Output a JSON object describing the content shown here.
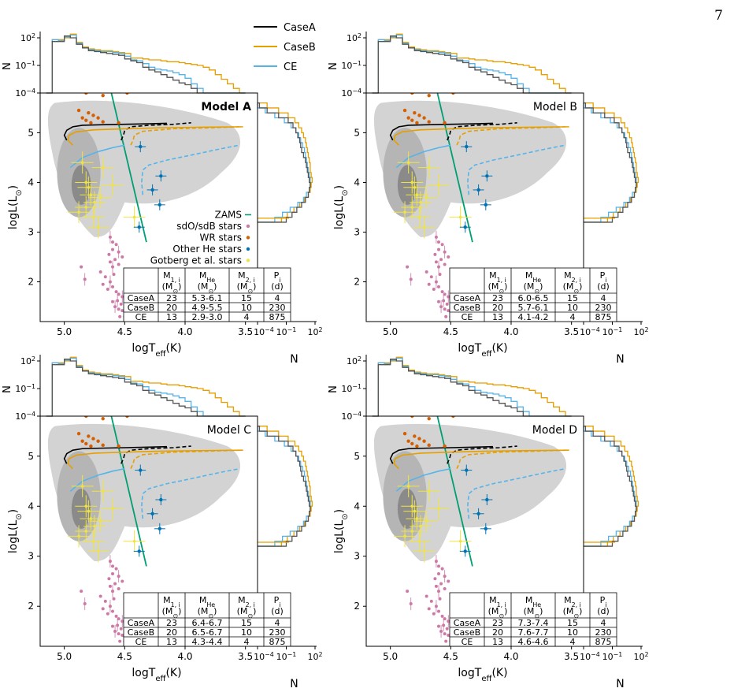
{
  "page_number": "7",
  "legend_tracks": [
    "CaseA",
    "CaseB",
    "CE"
  ],
  "legend_stars": [
    "ZAMS",
    "sdO/sdB stars",
    "WR stars",
    "Other He stars",
    "Gotberg et al. stars"
  ],
  "colors": {
    "CaseA": "#000000",
    "CaseB": "#e69f00",
    "CE": "#56b4e9",
    "ZAMS": "#009e73",
    "sdO": "#cc79a7",
    "WR": "#d55e00",
    "OtherHe": "#0072b2",
    "Gotberg": "#f0e442",
    "contour_light": "#d3d3d3",
    "contour_mid": "#b5b5b5",
    "contour_dark": "#8a8a8a"
  },
  "axes": {
    "xlabel": "logT",
    "xlabel_sub": "eff",
    "xlabel_unit": "(K)",
    "ylabel": "logL(L",
    "ylabel_sub": "⊙",
    "ylabel_close": ")",
    "hist_ylabel": "N",
    "hist_xlabel": "N",
    "x_ticks": [
      "5.0",
      "4.5",
      "4.0",
      "3.5"
    ],
    "y_ticks": [
      "2",
      "3",
      "4",
      "5"
    ],
    "hist_ticks": [
      "10",
      "10",
      "10"
    ],
    "hist_tick_exps": [
      "2",
      "−1",
      "−4"
    ],
    "hist_tick_exps_horizontal": [
      "−4",
      "−1",
      "2"
    ]
  },
  "table_headers": [
    {
      "main": "M",
      "sub": "1, i",
      "unit": "(M",
      "unit_sub": "⊙",
      "close": ")"
    },
    {
      "main": "M",
      "sub": "He",
      "unit": "(M",
      "unit_sub": "⊙",
      "close": ")"
    },
    {
      "main": "M",
      "sub": "2, i",
      "unit": "(M",
      "unit_sub": "⊙",
      "close": ")"
    },
    {
      "main": "P",
      "sub": "i",
      "unit": "(d)",
      "unit_sub": "",
      "close": ""
    }
  ],
  "panels": [
    {
      "title": "Model A",
      "title_bold": true,
      "rows": [
        [
          "CaseA",
          "23",
          "5.3-6.1",
          "15",
          "4"
        ],
        [
          "CaseB",
          "20",
          "4.9-5.5",
          "10",
          "230"
        ],
        [
          "CE",
          "13",
          "2.9-3.0",
          "4",
          "875"
        ]
      ]
    },
    {
      "title": "Model B",
      "title_bold": false,
      "rows": [
        [
          "CaseA",
          "23",
          "6.0-6.5",
          "15",
          "4"
        ],
        [
          "CaseB",
          "20",
          "5.7-6.1",
          "10",
          "230"
        ],
        [
          "CE",
          "13",
          "4.1-4.2",
          "4",
          "875"
        ]
      ]
    },
    {
      "title": "Model C",
      "title_bold": false,
      "rows": [
        [
          "CaseA",
          "23",
          "6.4-6.7",
          "15",
          "4"
        ],
        [
          "CaseB",
          "20",
          "6.5-6.7",
          "10",
          "230"
        ],
        [
          "CE",
          "13",
          "4.3-4.4",
          "4",
          "875"
        ]
      ]
    },
    {
      "title": "Model D",
      "title_bold": false,
      "rows": [
        [
          "CaseA",
          "23",
          "7.3-7.4",
          "15",
          "4"
        ],
        [
          "CaseB",
          "20",
          "7.6-7.7",
          "10",
          "230"
        ],
        [
          "CE",
          "13",
          "4.6-4.6",
          "4",
          "875"
        ]
      ]
    }
  ],
  "chart_data": {
    "type": "scatter",
    "xlim": [
      5.2,
      3.4
    ],
    "ylim": [
      1.2,
      5.8
    ],
    "hist_log_range": [
      -4,
      2
    ],
    "zams": [
      [
        4.62,
        5.9
      ],
      [
        4.32,
        2.8
      ]
    ],
    "sdo_stars": [
      [
        4.62,
        2.9
      ],
      [
        4.6,
        2.8
      ],
      [
        4.6,
        2.65
      ],
      [
        4.57,
        2.75
      ],
      [
        4.55,
        2.6
      ],
      [
        4.52,
        2.5
      ],
      [
        4.58,
        2.45
      ],
      [
        4.62,
        2.4
      ],
      [
        4.6,
        2.3
      ],
      [
        4.55,
        2.35
      ],
      [
        4.7,
        2.2
      ],
      [
        4.66,
        2.1
      ],
      [
        4.62,
        2.0
      ],
      [
        4.6,
        1.9
      ],
      [
        4.57,
        1.8
      ],
      [
        4.55,
        1.75
      ],
      [
        4.52,
        1.7
      ],
      [
        4.5,
        1.65
      ],
      [
        4.48,
        1.6
      ],
      [
        4.6,
        1.6
      ],
      [
        4.58,
        1.5
      ],
      [
        4.55,
        1.45
      ],
      [
        4.52,
        1.42
      ],
      [
        4.5,
        1.4
      ],
      [
        4.48,
        1.35
      ],
      [
        4.46,
        1.4
      ],
      [
        4.44,
        1.5
      ],
      [
        4.53,
        1.55
      ],
      [
        4.56,
        1.62
      ],
      [
        4.64,
        1.85
      ],
      [
        4.68,
        1.95
      ],
      [
        4.86,
        2.3
      ],
      [
        4.83,
        2.05
      ],
      [
        4.63,
        2.55
      ],
      [
        4.59,
        2.15
      ],
      [
        4.54,
        1.3
      ],
      [
        4.5,
        1.3
      ]
    ],
    "wr_stars": [
      [
        4.82,
        5.8
      ],
      [
        4.75,
        5.85
      ],
      [
        4.68,
        5.75
      ],
      [
        4.58,
        5.9
      ],
      [
        4.52,
        5.85
      ],
      [
        4.48,
        5.8
      ],
      [
        4.8,
        5.4
      ],
      [
        4.76,
        5.35
      ],
      [
        4.72,
        5.3
      ],
      [
        4.85,
        5.3
      ],
      [
        4.88,
        5.45
      ],
      [
        4.55,
        5.2
      ],
      [
        4.68,
        5.22
      ],
      [
        4.78,
        5.2
      ],
      [
        4.82,
        5.25
      ]
    ],
    "other_he_stars": [
      [
        4.37,
        4.72
      ],
      [
        4.2,
        4.13
      ],
      [
        4.27,
        3.85
      ],
      [
        4.21,
        3.55
      ],
      [
        4.38,
        3.1
      ]
    ],
    "gotberg_stars": [
      [
        4.85,
        4.4
      ],
      [
        4.82,
        4.0
      ],
      [
        4.8,
        3.9
      ],
      [
        4.78,
        3.75
      ],
      [
        4.75,
        3.6
      ],
      [
        4.82,
        3.5
      ],
      [
        4.88,
        3.4
      ],
      [
        4.76,
        3.3
      ],
      [
        4.7,
        3.7
      ],
      [
        4.68,
        4.3
      ],
      [
        4.72,
        3.1
      ],
      [
        4.42,
        3.3
      ],
      [
        4.6,
        3.95
      ]
    ],
    "tracks": [
      {
        "name": "CaseA",
        "solid": [
          [
            4.98,
            4.85
          ],
          [
            5.0,
            4.95
          ],
          [
            4.98,
            5.05
          ],
          [
            4.93,
            5.12
          ],
          [
            4.85,
            5.15
          ],
          [
            4.7,
            5.16
          ],
          [
            4.5,
            5.17
          ],
          [
            4.3,
            5.18
          ],
          [
            4.15,
            5.19
          ]
        ],
        "dashed": [
          [
            4.53,
            4.85
          ],
          [
            4.51,
            4.95
          ],
          [
            4.5,
            5.05
          ],
          [
            4.45,
            5.12
          ],
          [
            4.3,
            5.15
          ],
          [
            4.1,
            5.17
          ],
          [
            3.95,
            5.2
          ]
        ]
      },
      {
        "name": "CaseB",
        "solid": [
          [
            4.93,
            4.75
          ],
          [
            4.97,
            4.85
          ],
          [
            4.96,
            4.95
          ],
          [
            4.9,
            5.02
          ],
          [
            4.75,
            5.06
          ],
          [
            4.5,
            5.08
          ],
          [
            4.2,
            5.1
          ],
          [
            3.9,
            5.11
          ],
          [
            3.52,
            5.12
          ]
        ],
        "dashed": [
          [
            4.45,
            4.75
          ],
          [
            4.43,
            4.85
          ],
          [
            4.42,
            4.95
          ],
          [
            4.35,
            5.03
          ],
          [
            4.1,
            5.08
          ],
          [
            3.8,
            5.1
          ],
          [
            3.55,
            5.12
          ]
        ]
      },
      {
        "name": "CE",
        "solid": [
          [
            4.95,
            4.3
          ],
          [
            4.85,
            4.5
          ],
          [
            4.72,
            4.62
          ],
          [
            4.6,
            4.7
          ],
          [
            4.5,
            4.75
          ]
        ],
        "dashed": [
          [
            4.35,
            3.75
          ],
          [
            4.36,
            4.0
          ],
          [
            4.35,
            4.25
          ],
          [
            4.3,
            4.35
          ],
          [
            4.15,
            4.45
          ],
          [
            3.95,
            4.55
          ],
          [
            3.7,
            4.68
          ],
          [
            3.55,
            4.75
          ]
        ]
      }
    ],
    "hist_T_edges": [
      5.15,
      5.1,
      5.05,
      5.0,
      4.95,
      4.9,
      4.85,
      4.8,
      4.75,
      4.7,
      4.65,
      4.6,
      4.55,
      4.5,
      4.45,
      4.4,
      4.35,
      4.3,
      4.25,
      4.2,
      4.15,
      4.1,
      4.05,
      4.0,
      3.95,
      3.9,
      3.85,
      3.8,
      3.75,
      3.7,
      3.65,
      3.6,
      3.55,
      3.5
    ],
    "hist_T": {
      "CaseA": [
        -4,
        1.6,
        1.6,
        2.2,
        2.0,
        1.3,
        0.9,
        0.6,
        0.5,
        0.4,
        0.3,
        0.2,
        0.1,
        -0.3,
        -0.5,
        -0.7,
        -1.2,
        -1.5,
        -1.7,
        -2.0,
        -2.3,
        -2.6,
        -2.9,
        -3.1,
        -3.5,
        -4,
        -4,
        -4,
        -4,
        -4,
        -4,
        -4,
        -4
      ],
      "CaseB": [
        -4,
        1.8,
        1.8,
        2.0,
        2.4,
        1.5,
        1.0,
        0.8,
        0.7,
        0.6,
        0.6,
        0.5,
        0.4,
        0.3,
        -0.2,
        -0.2,
        -0.3,
        -0.4,
        -0.4,
        -0.5,
        -0.6,
        -0.6,
        -0.7,
        -0.8,
        -0.9,
        -1.0,
        -1.2,
        -1.5,
        -2.0,
        -2.5,
        -3.0,
        -3.5,
        -4
      ],
      "CE": [
        -4,
        1.8,
        1.7,
        2.1,
        2.3,
        1.4,
        0.9,
        0.7,
        0.6,
        0.5,
        0.5,
        0.4,
        0.3,
        0.0,
        -0.4,
        -0.5,
        -0.8,
        -1.2,
        -1.4,
        -1.5,
        -1.6,
        -1.8,
        -2.0,
        -2.4,
        -3.0,
        -3.5,
        -4,
        -4,
        -4,
        -4,
        -4,
        -4,
        -4
      ]
    },
    "hist_L_edges": [
      3.2,
      3.3,
      3.4,
      3.5,
      3.6,
      3.7,
      3.8,
      3.9,
      4.0,
      4.1,
      4.2,
      4.3,
      4.4,
      4.5,
      4.6,
      4.7,
      4.8,
      4.9,
      5.0,
      5.1,
      5.2,
      5.3,
      5.4,
      5.5,
      5.6
    ],
    "hist_L": {
      "CaseA": [
        -1.0,
        -0.4,
        0.1,
        0.6,
        1.0,
        1.3,
        1.4,
        1.5,
        1.4,
        1.3,
        1.2,
        1.1,
        1.0,
        0.8,
        0.6,
        0.5,
        0.4,
        0.2,
        0.0,
        -0.3,
        -0.8,
        -1.8,
        -3.0,
        -3.8
      ],
      "CaseB": [
        -1.5,
        -0.9,
        -0.2,
        0.4,
        0.9,
        1.3,
        1.5,
        1.6,
        1.7,
        1.6,
        1.5,
        1.5,
        1.4,
        1.3,
        1.2,
        1.1,
        1.0,
        0.8,
        0.6,
        0.3,
        -0.1,
        -0.8,
        -1.8,
        -3.0
      ],
      "CE": [
        -2.2,
        -1.4,
        -0.6,
        0.2,
        0.8,
        1.1,
        1.4,
        1.5,
        1.5,
        1.4,
        1.3,
        1.2,
        1.1,
        1.0,
        0.9,
        0.7,
        0.5,
        0.3,
        0.0,
        -0.5,
        -1.2,
        -2.2,
        -3.2,
        -4.0
      ]
    }
  }
}
